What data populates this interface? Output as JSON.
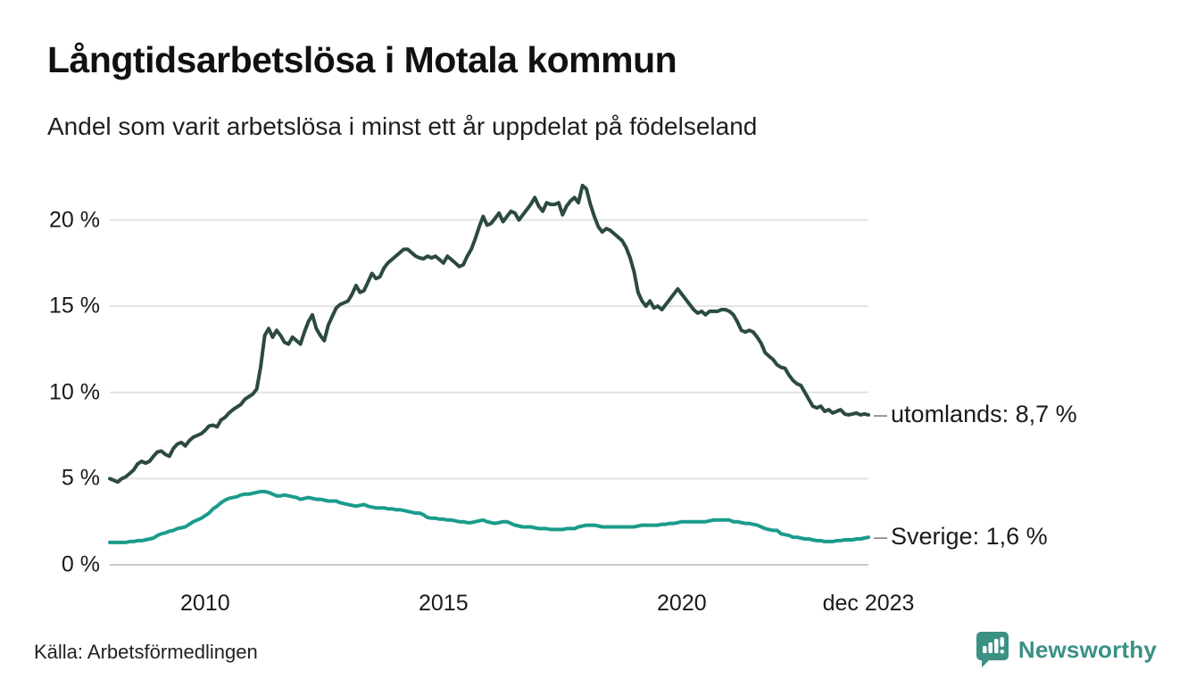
{
  "header": {
    "title": "Långtidsarbetslösa i Motala kommun",
    "subtitle": "Andel som varit arbetslösa i minst ett år uppdelat på födelseland"
  },
  "chart_data": {
    "type": "line",
    "unit": "%",
    "x_monthly_start": "2008-01",
    "x_monthly_end": "2023-12",
    "grid": "horizontal",
    "ylim": [
      0,
      22.5
    ],
    "y_ticks": [
      {
        "label": "0 %",
        "value": 0
      },
      {
        "label": "5 %",
        "value": 5
      },
      {
        "label": "10 %",
        "value": 10
      },
      {
        "label": "15 %",
        "value": 15
      },
      {
        "label": "20 %",
        "value": 20
      }
    ],
    "x_ticks": [
      {
        "label": "2010",
        "month_index": 24
      },
      {
        "label": "2015",
        "month_index": 84
      },
      {
        "label": "2020",
        "month_index": 144
      },
      {
        "label": "dec 2023",
        "month_index": 191
      }
    ],
    "series": [
      {
        "name": "utomlands",
        "color": "#2b4a41",
        "end_label": "utomlands: 8,7 %",
        "end_value": 8.7,
        "values": [
          5.0,
          4.9,
          4.8,
          5.0,
          5.1,
          5.3,
          5.5,
          5.85,
          6.0,
          5.9,
          6.0,
          6.3,
          6.55,
          6.6,
          6.4,
          6.3,
          6.75,
          7.0,
          7.1,
          6.9,
          7.2,
          7.4,
          7.5,
          7.6,
          7.8,
          8.05,
          8.1,
          8.0,
          8.4,
          8.55,
          8.8,
          9.0,
          9.15,
          9.3,
          9.6,
          9.75,
          9.9,
          10.2,
          11.5,
          13.3,
          13.7,
          13.2,
          13.6,
          13.3,
          12.9,
          12.8,
          13.2,
          13.0,
          12.8,
          13.5,
          14.1,
          14.5,
          13.7,
          13.3,
          13.0,
          13.9,
          14.4,
          14.9,
          15.1,
          15.2,
          15.3,
          15.7,
          16.2,
          15.8,
          15.9,
          16.4,
          16.9,
          16.6,
          16.7,
          17.2,
          17.5,
          17.7,
          17.9,
          18.1,
          18.3,
          18.3,
          18.1,
          17.9,
          17.8,
          17.75,
          17.9,
          17.8,
          17.9,
          17.7,
          17.5,
          17.9,
          17.7,
          17.5,
          17.3,
          17.4,
          17.9,
          18.3,
          18.9,
          19.6,
          20.2,
          19.7,
          19.8,
          20.1,
          20.4,
          19.9,
          20.2,
          20.5,
          20.4,
          20.0,
          20.3,
          20.6,
          20.9,
          21.3,
          20.8,
          20.5,
          21.0,
          20.9,
          20.9,
          21.0,
          20.3,
          20.8,
          21.1,
          21.3,
          21.0,
          22.0,
          21.8,
          20.9,
          20.2,
          19.6,
          19.3,
          19.5,
          19.4,
          19.2,
          19.0,
          18.8,
          18.4,
          17.8,
          17.0,
          15.8,
          15.3,
          15.0,
          15.3,
          14.9,
          15.0,
          14.8,
          15.1,
          15.4,
          15.7,
          16.0,
          15.7,
          15.4,
          15.1,
          14.8,
          14.6,
          14.7,
          14.5,
          14.7,
          14.7,
          14.7,
          14.8,
          14.8,
          14.7,
          14.5,
          14.1,
          13.6,
          13.5,
          13.6,
          13.5,
          13.2,
          12.85,
          12.3,
          12.1,
          11.9,
          11.6,
          11.45,
          11.4,
          11.0,
          10.7,
          10.5,
          10.4,
          10.0,
          9.6,
          9.2,
          9.1,
          9.2,
          8.9,
          9.0,
          8.8,
          8.9,
          9.0,
          8.75,
          8.7,
          8.75,
          8.8,
          8.7,
          8.75,
          8.7
        ]
      },
      {
        "name": "Sverige",
        "color": "#1a9c8b",
        "end_label": "Sverige: 1,6 %",
        "end_value": 1.6,
        "values": [
          1.3,
          1.3,
          1.3,
          1.3,
          1.3,
          1.35,
          1.35,
          1.4,
          1.4,
          1.45,
          1.5,
          1.55,
          1.7,
          1.8,
          1.85,
          1.95,
          2.0,
          2.1,
          2.15,
          2.2,
          2.35,
          2.5,
          2.6,
          2.7,
          2.85,
          3.0,
          3.25,
          3.4,
          3.6,
          3.75,
          3.85,
          3.9,
          3.95,
          4.05,
          4.1,
          4.1,
          4.15,
          4.2,
          4.25,
          4.25,
          4.2,
          4.1,
          4.0,
          4.0,
          4.05,
          4.0,
          3.95,
          3.9,
          3.8,
          3.85,
          3.9,
          3.85,
          3.8,
          3.8,
          3.75,
          3.7,
          3.7,
          3.7,
          3.6,
          3.55,
          3.5,
          3.45,
          3.4,
          3.45,
          3.5,
          3.4,
          3.35,
          3.3,
          3.3,
          3.3,
          3.25,
          3.25,
          3.2,
          3.2,
          3.15,
          3.1,
          3.05,
          3.0,
          3.0,
          2.9,
          2.75,
          2.7,
          2.7,
          2.65,
          2.65,
          2.6,
          2.6,
          2.55,
          2.5,
          2.5,
          2.45,
          2.45,
          2.5,
          2.55,
          2.6,
          2.5,
          2.45,
          2.4,
          2.45,
          2.5,
          2.5,
          2.4,
          2.3,
          2.25,
          2.2,
          2.2,
          2.2,
          2.15,
          2.1,
          2.1,
          2.1,
          2.05,
          2.05,
          2.05,
          2.05,
          2.1,
          2.1,
          2.1,
          2.2,
          2.25,
          2.3,
          2.3,
          2.3,
          2.25,
          2.2,
          2.2,
          2.2,
          2.2,
          2.2,
          2.2,
          2.2,
          2.2,
          2.2,
          2.25,
          2.3,
          2.3,
          2.3,
          2.3,
          2.3,
          2.35,
          2.35,
          2.4,
          2.4,
          2.45,
          2.5,
          2.5,
          2.5,
          2.5,
          2.5,
          2.5,
          2.5,
          2.55,
          2.6,
          2.6,
          2.6,
          2.6,
          2.6,
          2.5,
          2.5,
          2.45,
          2.4,
          2.4,
          2.35,
          2.3,
          2.2,
          2.1,
          2.05,
          2.0,
          2.0,
          1.8,
          1.75,
          1.7,
          1.6,
          1.6,
          1.55,
          1.5,
          1.5,
          1.45,
          1.4,
          1.4,
          1.35,
          1.35,
          1.35,
          1.4,
          1.4,
          1.45,
          1.45,
          1.45,
          1.5,
          1.5,
          1.55,
          1.6
        ]
      }
    ],
    "grid_color": "#e3e3e3",
    "baseline_color": "#c9c9c9"
  },
  "footer": {
    "source": "Källa: Arbetsförmedlingen",
    "brand": "Newsworthy",
    "brand_color": "#3a9184"
  }
}
